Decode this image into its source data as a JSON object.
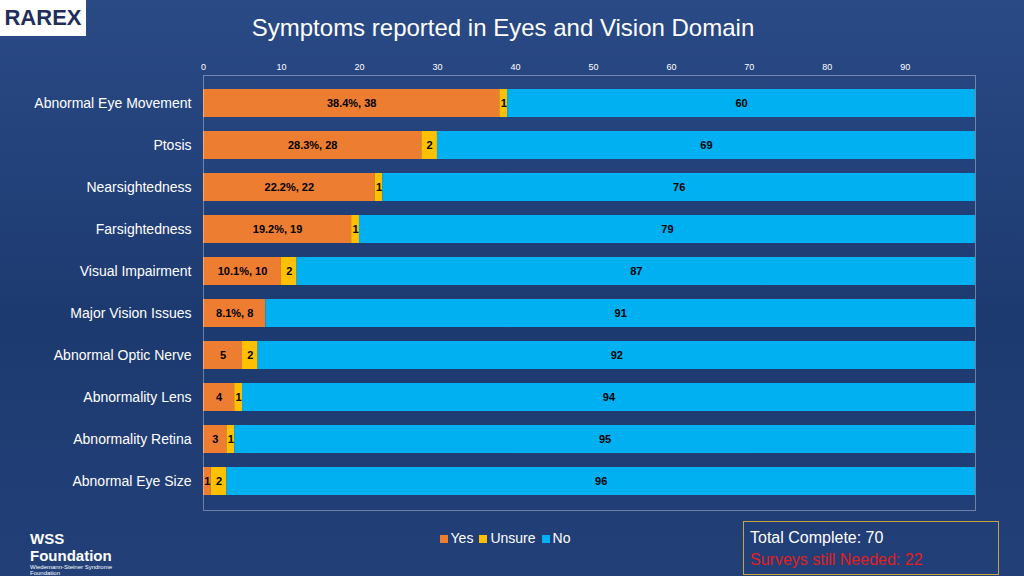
{
  "chart_data": {
    "type": "bar",
    "orientation": "horizontal",
    "stacked": true,
    "data_labels": true,
    "grid": false,
    "title": "Symptoms reported in Eyes and Vision Domain",
    "categories": [
      "Abnormal Eye Movement",
      "Ptosis",
      "Nearsightedness",
      "Farsightedness",
      "Visual Impairment",
      "Major Vision Issues",
      "Abnormal Optic Nerve",
      "Abnormality Lens",
      "Abnormality Retina",
      "Abnormal Eye Size"
    ],
    "series": [
      {
        "name": "Yes",
        "color": "#ed7d31",
        "values": [
          38,
          28,
          22,
          19,
          10,
          8,
          5,
          4,
          3,
          1
        ],
        "value_labels": [
          "38.4%, 38",
          "28.3%, 28",
          "22.2%, 22",
          "19.2%, 19",
          "10.1%, 10",
          "8.1%, 8",
          "5",
          "4",
          "3",
          "1"
        ]
      },
      {
        "name": "Unsure",
        "color": "#ffc000",
        "values": [
          1,
          2,
          1,
          1,
          2,
          null,
          2,
          1,
          1,
          2
        ]
      },
      {
        "name": "No",
        "color": "#00b0f0",
        "values": [
          60,
          69,
          76,
          79,
          87,
          91,
          92,
          94,
          95,
          96
        ]
      }
    ],
    "xlim": [
      0,
      99
    ],
    "xticks": [
      0,
      10,
      20,
      30,
      40,
      50,
      60,
      70,
      80,
      90
    ],
    "legend": "bottom",
    "annotations": [
      "Total Complete: 70",
      "Surveys still Needed: 22",
      "RAREX",
      "WSS Foundation",
      "Wiedemann-Steiner Syndrome Foundation"
    ]
  }
}
